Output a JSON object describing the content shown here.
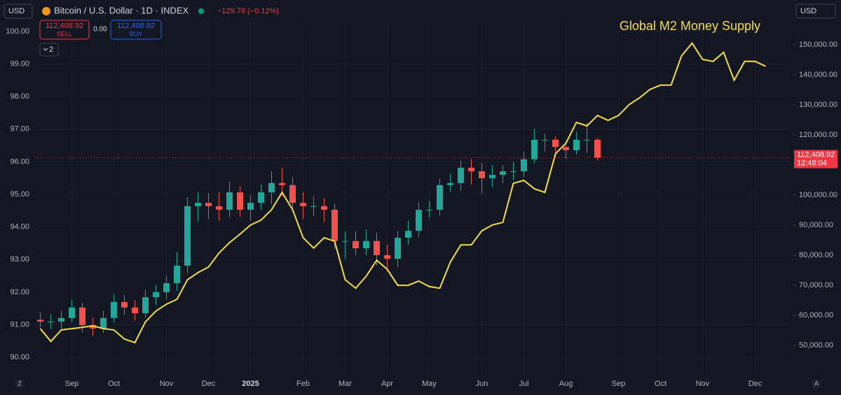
{
  "ui": {
    "currency_left": "USD",
    "currency_right": "USD",
    "symbol": "Bitcoin / U.S. Dollar · 1D · INDEX",
    "change": "−129.78 (−0.12%)",
    "sell_price": "112,408.92",
    "sell_label": "SELL",
    "spread": "0.00",
    "buy_price": "112,408.92",
    "buy_label": "BUY",
    "indicators_count": "2",
    "countdown": "12:48:04",
    "scale_left_button": "Z",
    "scale_right_button": "A"
  },
  "chart_data": {
    "type": "candlestick",
    "annotation": "Global M2 Money Supply",
    "grid": true,
    "categories": [
      null,
      null,
      null,
      "Sep",
      null,
      null,
      null,
      "Oct",
      null,
      null,
      null,
      null,
      "Nov",
      null,
      null,
      null,
      "Dec",
      null,
      null,
      null,
      "2025",
      null,
      null,
      null,
      null,
      "Feb",
      null,
      null,
      null,
      "Mar",
      null,
      null,
      null,
      "Apr",
      null,
      null,
      null,
      "May",
      null,
      null,
      null,
      null,
      "Jun",
      null,
      null,
      null,
      "Jul",
      null,
      null,
      null,
      "Aug",
      null,
      null,
      null,
      null,
      "Sep",
      null,
      null,
      null,
      "Oct",
      null,
      null,
      null,
      "Nov",
      null,
      null,
      null,
      null,
      "Dec",
      null,
      null,
      null
    ],
    "ylim": [
      89.38,
      100.32
    ],
    "yticks": [
      {
        "value": 90,
        "label": "90.00"
      },
      {
        "value": 91,
        "label": "91.00"
      },
      {
        "value": 92,
        "label": "92.00"
      },
      {
        "value": 93,
        "label": "93.00"
      },
      {
        "value": 94,
        "label": "94.00"
      },
      {
        "value": 95,
        "label": "95.00"
      },
      {
        "value": 96,
        "label": "96.00"
      },
      {
        "value": 97,
        "label": "97.00"
      },
      {
        "value": 98,
        "label": "98.00"
      },
      {
        "value": 99,
        "label": "99.00"
      },
      {
        "value": 100,
        "label": "100.00"
      }
    ],
    "y2lim": [
      39300,
      157900
    ],
    "y2ticks": [
      {
        "value": 50000,
        "label": "50,000.00"
      },
      {
        "value": 60000,
        "label": "60,000.00"
      },
      {
        "value": 70000,
        "label": "70,000.00"
      },
      {
        "value": 80000,
        "label": "80,000.00"
      },
      {
        "value": 90000,
        "label": "90,000.00"
      },
      {
        "value": 100000,
        "label": "100,000.00"
      },
      {
        "value": 110000,
        "label": "110,000.00"
      },
      {
        "value": 120000,
        "label": "120,000.00"
      },
      {
        "value": 130000,
        "label": "130,000.00"
      },
      {
        "value": 140000,
        "label": "140,000.00"
      },
      {
        "value": 150000,
        "label": "150,000.00"
      }
    ],
    "last_price": {
      "value": 112408.92,
      "label": "112,408.92",
      "color": "#f23645"
    },
    "candles": {
      "axis": "y2",
      "up_color": "#26a69a",
      "down_color": "#ef5350",
      "open": [
        58500,
        57900,
        57900,
        59100,
        62600,
        56700,
        55600,
        59100,
        64400,
        62600,
        60700,
        66000,
        67700,
        70700,
        76500,
        96300,
        97400,
        96300,
        95100,
        100900,
        95100,
        97400,
        100900,
        104000,
        103300,
        97400,
        96300,
        96300,
        95100,
        84700,
        84700,
        82300,
        84700,
        80000,
        78800,
        85800,
        88100,
        95100,
        95100,
        103300,
        104000,
        109100,
        107900,
        105600,
        106700,
        107900,
        107900,
        111900,
        118400,
        118400,
        116000,
        114900,
        118400,
        118400,
        null,
        null,
        null,
        null,
        null,
        null,
        null,
        null,
        null,
        null,
        null,
        null,
        null,
        null,
        null,
        null,
        null,
        null
      ],
      "high": [
        61000,
        60400,
        61600,
        65100,
        64100,
        59200,
        61600,
        66900,
        66900,
        65100,
        68500,
        70200,
        73200,
        81000,
        99300,
        101000,
        100500,
        101000,
        104500,
        103000,
        99900,
        103400,
        108000,
        109000,
        106000,
        101000,
        99500,
        99000,
        97000,
        88000,
        88000,
        88500,
        87500,
        83500,
        88000,
        91500,
        97500,
        98000,
        105500,
        107000,
        111500,
        112000,
        110500,
        110000,
        110000,
        111000,
        114500,
        122000,
        120500,
        119500,
        118000,
        121000,
        124000,
        119000,
        null,
        null,
        null,
        null,
        null,
        null,
        null,
        null,
        null,
        null,
        null,
        null,
        null,
        null,
        null,
        null,
        null,
        null
      ],
      "low": [
        56000,
        55400,
        55400,
        57600,
        54200,
        53100,
        54100,
        57600,
        60100,
        58200,
        59200,
        63500,
        65200,
        68200,
        74000,
        91000,
        92000,
        91500,
        92500,
        92600,
        91500,
        95000,
        97000,
        99500,
        94900,
        92000,
        93000,
        91000,
        82000,
        79000,
        80000,
        80000,
        76500,
        74500,
        76000,
        83500,
        86000,
        92500,
        93000,
        101000,
        101500,
        103500,
        100500,
        102500,
        104000,
        105000,
        106000,
        110500,
        114500,
        112500,
        112000,
        113500,
        114000,
        111500,
        null,
        null,
        null,
        null,
        null,
        null,
        null,
        null,
        null,
        null,
        null,
        null,
        null,
        null,
        null,
        null,
        null,
        null
      ],
      "close": [
        57900,
        57900,
        59100,
        62600,
        56700,
        55600,
        59100,
        64400,
        62600,
        60700,
        66000,
        67700,
        70700,
        76500,
        96300,
        97400,
        96300,
        95100,
        100900,
        95100,
        97400,
        100900,
        104000,
        103300,
        97400,
        96300,
        96300,
        95100,
        84700,
        84700,
        82300,
        84700,
        80000,
        78800,
        85800,
        88100,
        95100,
        95100,
        103300,
        104000,
        109100,
        107900,
        105600,
        106700,
        107900,
        107900,
        111900,
        118400,
        118400,
        116000,
        114900,
        118400,
        118400,
        112400,
        null,
        null,
        null,
        null,
        null,
        null,
        null,
        null,
        null,
        null,
        null,
        null,
        null,
        null,
        null,
        null,
        null,
        null
      ]
    },
    "series": [
      {
        "type": "line",
        "axis": "y",
        "color": "#f7dc4a",
        "values": [
          90.88,
          90.49,
          90.84,
          90.88,
          90.92,
          90.97,
          90.88,
          90.84,
          90.56,
          90.45,
          91.09,
          91.42,
          91.63,
          91.78,
          92.38,
          92.6,
          92.77,
          93.2,
          93.52,
          93.78,
          94.06,
          94.21,
          94.53,
          95.06,
          94.53,
          93.67,
          93.35,
          93.67,
          93.56,
          92.38,
          92.12,
          92.49,
          92.98,
          92.7,
          92.21,
          92.21,
          92.34,
          92.17,
          92.12,
          92.92,
          93.45,
          93.45,
          93.88,
          94.06,
          94.14,
          95.34,
          95.43,
          95.17,
          95.06,
          96.24,
          96.57,
          97.21,
          97.1,
          97.42,
          97.27,
          97.42,
          97.75,
          97.96,
          98.22,
          98.35,
          98.35,
          99.25,
          99.64,
          99.14,
          99.08,
          99.36,
          98.5,
          99.08,
          99.08,
          98.93,
          null,
          null
        ]
      }
    ]
  }
}
